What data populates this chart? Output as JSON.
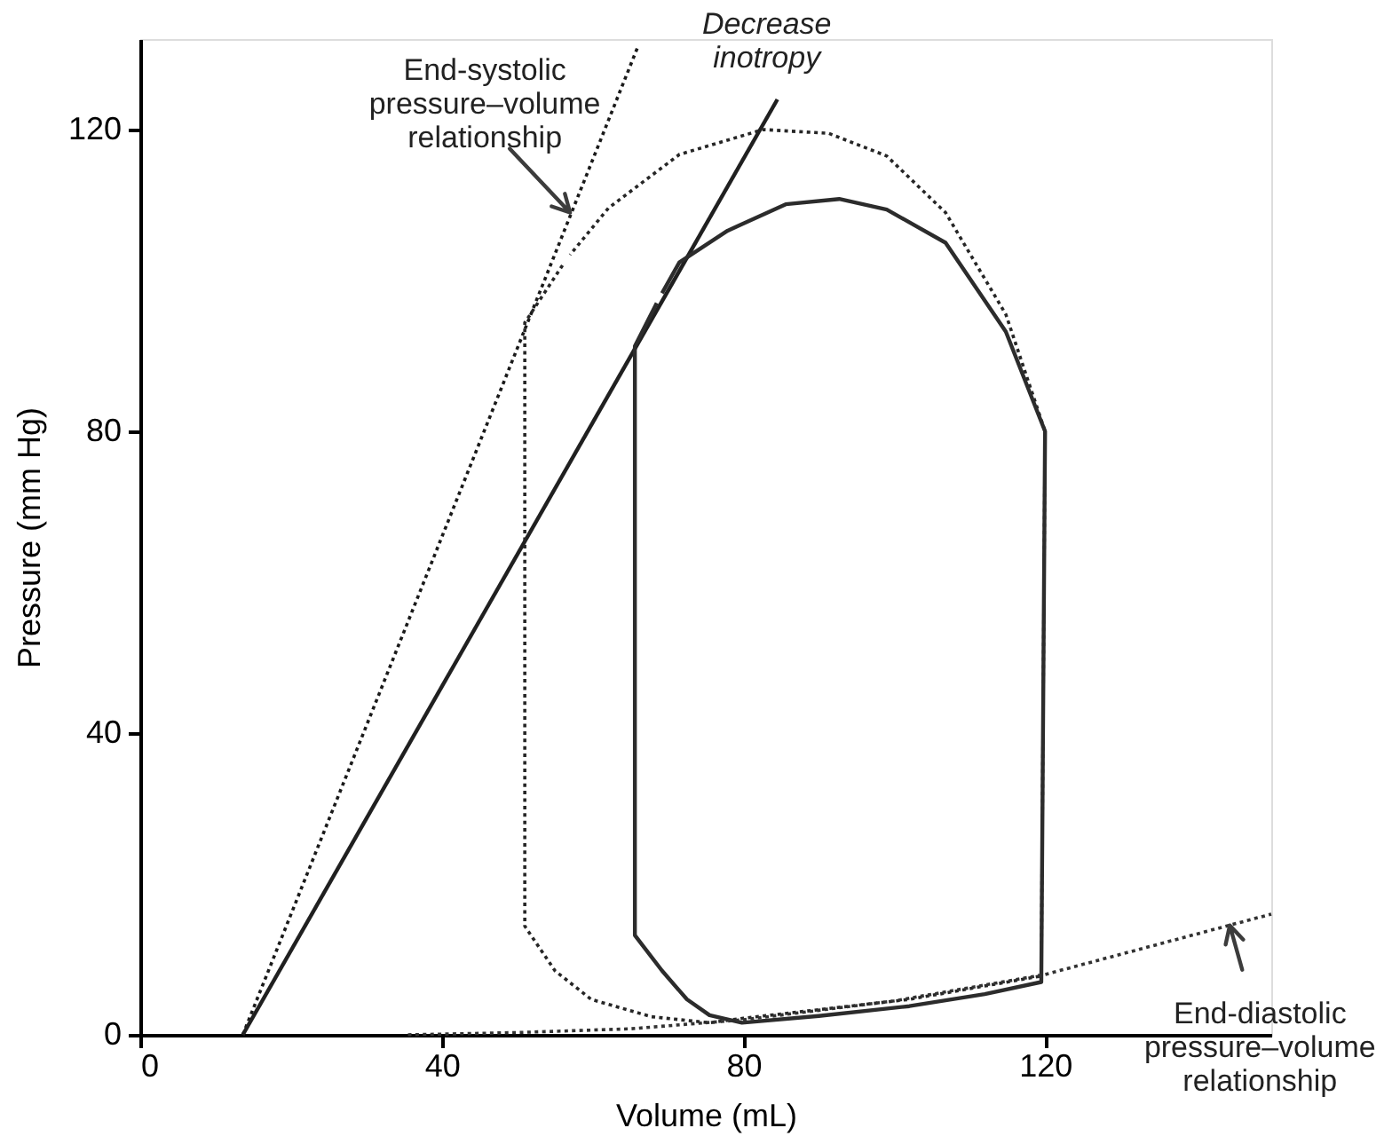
{
  "chart_data": {
    "type": "line",
    "xlabel": "Volume (mL)",
    "ylabel": "Pressure (mm Hg)",
    "xlim": [
      0,
      150
    ],
    "ylim": [
      0,
      132
    ],
    "xticks": [
      0,
      40,
      80,
      120
    ],
    "yticks": [
      0,
      40,
      80,
      120
    ],
    "grid": false,
    "marker": "none",
    "series": [
      {
        "color": "#1a1a1a",
        "line_style": "dotted",
        "x": [
          13.6,
          66
        ],
        "values": [
          0,
          131
        ]
      },
      {
        "color": "#202020",
        "line_style": "solid",
        "x": [
          13.6,
          84.5
        ],
        "values": [
          0,
          124
        ]
      },
      {
        "color": "#262626",
        "line_style": "dotted",
        "x": [
          56,
          51,
          51,
          55,
          59.8,
          67.8,
          75.5,
          80,
          102,
          119.5,
          120,
          114.8,
          106.8,
          99,
          91.3,
          82.6,
          71.5,
          62.1,
          57
        ],
        "values": [
          102,
          94.4,
          14.4,
          8.5,
          4.7,
          2.4,
          1.6,
          2.2,
          4.7,
          7.8,
          80,
          95.5,
          109,
          116.5,
          119.5,
          120,
          116.7,
          109.6,
          103.4
        ]
      },
      {
        "color": "#2c2c2c",
        "line_style": "solid",
        "x": [
          68.5,
          65.6,
          65.6,
          69.2,
          72.5,
          75.5,
          79.8,
          90,
          102,
          112,
          119.5,
          120,
          114.8,
          106.8,
          99,
          92.7,
          85.6,
          77.9,
          71.5,
          69.2
        ],
        "values": [
          97,
          91.3,
          13.2,
          8.5,
          4.7,
          2.6,
          1.6,
          2.5,
          3.8,
          5.4,
          7,
          80,
          93.2,
          105,
          109.4,
          110.8,
          110.1,
          106.6,
          102.4,
          98.3
        ]
      },
      {
        "color": "#323232",
        "line_style": "dotted",
        "x": [
          35.5,
          50,
          65,
          80,
          100,
          120,
          135,
          150
        ],
        "values": [
          0,
          0.3,
          0.8,
          2,
          4.5,
          8,
          12,
          16
        ]
      }
    ],
    "annotations": [
      {
        "text": "End-systolic\npressure–volume\nrelationship",
        "x": 57,
        "y": 109
      },
      {
        "text": "Decrease\ninotropy",
        "x": 84.5,
        "y": 124
      },
      {
        "text": "End-diastolic\npressure–volume\nrelationship",
        "x": 144.5,
        "y": 14.5
      }
    ]
  }
}
